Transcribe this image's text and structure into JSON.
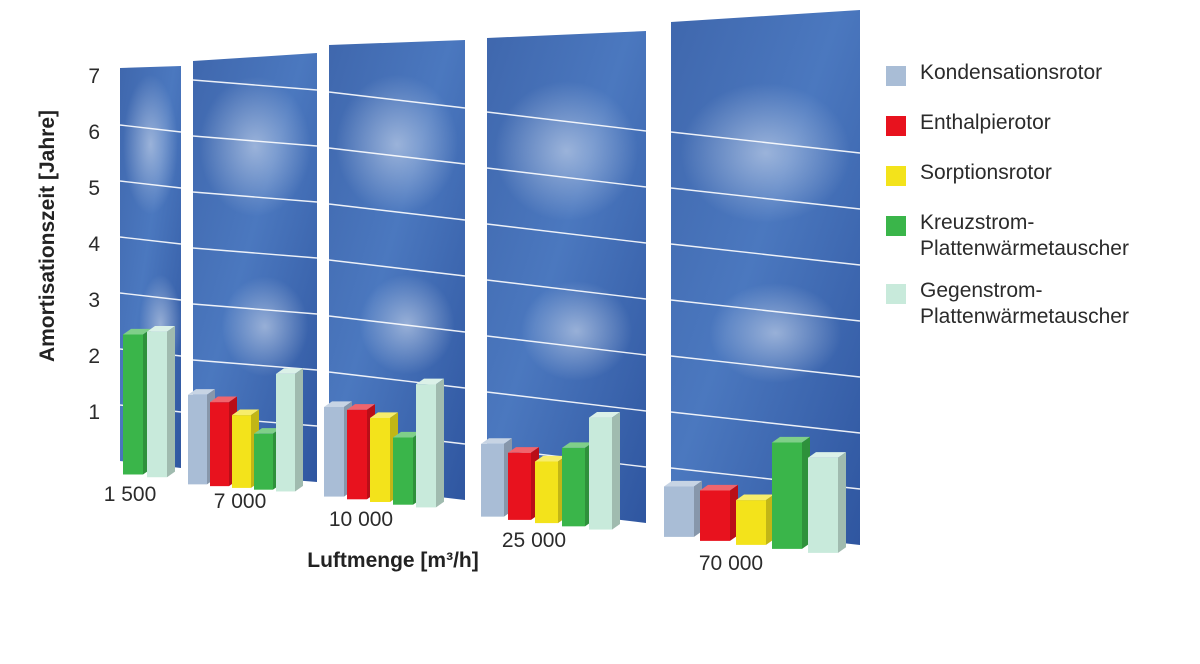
{
  "chart_data": {
    "type": "bar",
    "xlabel": "Luftmenge [m³/h]",
    "ylabel": "Amortisationszeit [Jahre]",
    "ylim": [
      0,
      7
    ],
    "y_ticks": [
      "1",
      "2",
      "3",
      "4",
      "5",
      "6",
      "7"
    ],
    "categories": [
      "1 500",
      "7 000",
      "10 000",
      "25 000",
      "70 000"
    ],
    "series": [
      {
        "name": "Kondensationsrotor",
        "color": "#a9bdd6",
        "values": [
          null,
          1.6,
          1.6,
          1.3,
          0.9
        ]
      },
      {
        "name": "Enthalpierotor",
        "color": "#e8121e",
        "values": [
          null,
          1.5,
          1.6,
          1.2,
          0.9
        ]
      },
      {
        "name": "Sorptionsrotor",
        "color": "#f3e31b",
        "values": [
          null,
          1.3,
          1.5,
          1.1,
          0.8
        ]
      },
      {
        "name": "Kreuzstrom-\nPlattenwärmetauscher",
        "color": "#3ab54a",
        "values": [
          2.5,
          1.0,
          1.2,
          1.4,
          1.9
        ]
      },
      {
        "name": "Gegenstrom-\nPlattenwärmetauscher",
        "color": "#c8eadb",
        "values": [
          2.6,
          2.1,
          2.2,
          2.0,
          1.7
        ]
      }
    ],
    "grid": true,
    "legend_position": "right"
  }
}
